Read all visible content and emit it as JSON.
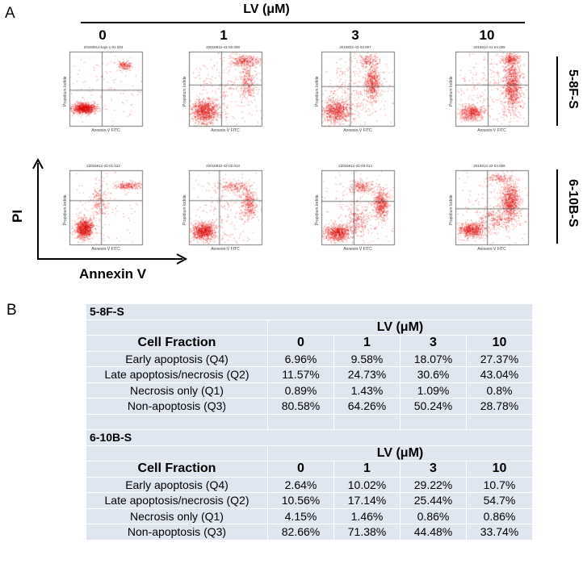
{
  "panel_a": {
    "letter": "A",
    "treatment_title": "LV (μM)",
    "concentrations": [
      "0",
      "1",
      "3",
      "10"
    ],
    "x_axis_label": "Annexin V",
    "y_axis_label": "PI",
    "plot_x_label": "Annexin-V FITC",
    "plot_y_label": "Propidium Iodide",
    "rows": [
      {
        "cell_line": "5-8F-S",
        "plot_titles": [
          "20160812-kajs-1-01.004",
          "22016812-41-02.008",
          "2016812-41-03.007",
          "2016812-41-04.005"
        ]
      },
      {
        "cell_line": "6-10B-S",
        "plot_titles": [
          "22016812-42-01.012",
          "22016812-42-02.013",
          "22016812-42-03.014",
          "2016812-42-04.006"
        ]
      }
    ],
    "dot_color": "#e00000"
  },
  "panel_b": {
    "letter": "B",
    "table_bg": "#dfe6f0",
    "sections": [
      {
        "cell_line": "5-8F-S",
        "group_header": "LV (μM)",
        "columns": [
          "Cell Fraction",
          "0",
          "1",
          "3",
          "10"
        ],
        "rows": [
          [
            "Early apoptosis (Q4)",
            "6.96%",
            "9.58%",
            "18.07%",
            "27.37%"
          ],
          [
            "Late apoptosis/necrosis (Q2)",
            "11.57%",
            "24.73%",
            "30.6%",
            "43.04%"
          ],
          [
            "Necrosis only (Q1)",
            "0.89%",
            "1.43%",
            "1.09%",
            "0.8%"
          ],
          [
            "Non-apoptosis (Q3)",
            "80.58%",
            "64.26%",
            "50.24%",
            "28.78%"
          ]
        ]
      },
      {
        "cell_line": "6-10B-S",
        "group_header": "LV (μM)",
        "columns": [
          "Cell Fraction",
          "0",
          "1",
          "3",
          "10"
        ],
        "rows": [
          [
            "Early apoptosis (Q4)",
            "2.64%",
            "10.02%",
            "29.22%",
            "10.7%"
          ],
          [
            "Late apoptosis/necrosis (Q2)",
            "10.56%",
            "17.14%",
            "25.44%",
            "54.7%"
          ],
          [
            "Necrosis only (Q1)",
            "4.15%",
            "1.46%",
            "0.86%",
            "0.86%"
          ],
          [
            "Non-apoptosis (Q3)",
            "82.66%",
            "71.38%",
            "44.48%",
            "33.74%"
          ]
        ]
      }
    ]
  }
}
